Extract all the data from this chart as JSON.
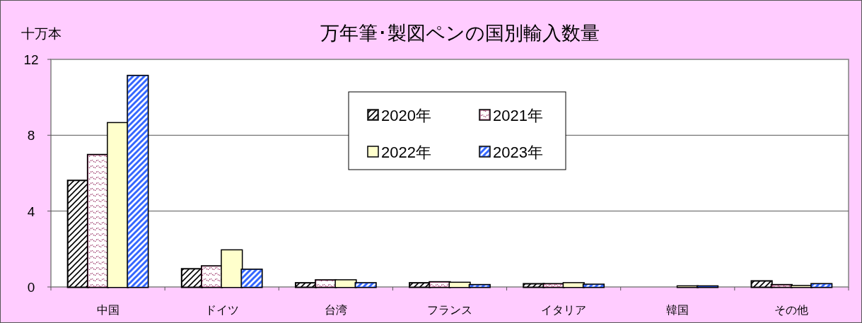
{
  "chart_data": {
    "type": "bar",
    "title": "万年筆･製図ペンの国別輸入数量",
    "ylabel": "十万本",
    "categories": [
      "中国",
      "ドイツ",
      "台湾",
      "フランス",
      "イタリア",
      "韓国",
      "その他"
    ],
    "series": [
      {
        "name": "2020年",
        "color": "#000000",
        "values": [
          5.6,
          0.94,
          0.2,
          0.2,
          0.15,
          0,
          0.3
        ]
      },
      {
        "name": "2021年",
        "color": "#993366",
        "values": [
          6.96,
          1.09,
          0.35,
          0.25,
          0.15,
          0,
          0.1
        ]
      },
      {
        "name": "2022年",
        "color": "#ffffcc",
        "values": [
          8.64,
          1.93,
          0.35,
          0.22,
          0.2,
          0.03,
          0.05
        ]
      },
      {
        "name": "2023年",
        "color": "#3366ff",
        "values": [
          11.13,
          0.91,
          0.2,
          0.1,
          0.12,
          0.03,
          0.15
        ]
      }
    ],
    "ylim": [
      0,
      12
    ],
    "yticks": [
      0,
      4,
      8,
      12
    ],
    "grid": "y",
    "legend": "top"
  }
}
